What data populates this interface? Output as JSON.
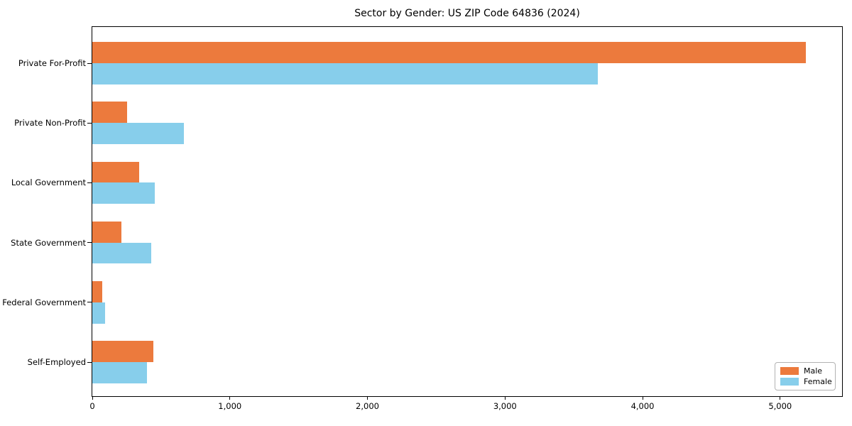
{
  "chart_data": {
    "type": "bar",
    "orientation": "horizontal",
    "title": "Sector by Gender: US ZIP Code 64836 (2024)",
    "categories": [
      "Private For-Profit",
      "Private Non-Profit",
      "Local Government",
      "State Government",
      "Federal Government",
      "Self-Employed"
    ],
    "series": [
      {
        "name": "Male",
        "color": "#EC7A3D",
        "values": [
          5185,
          255,
          340,
          210,
          70,
          445
        ]
      },
      {
        "name": "Female",
        "color": "#87CEEB",
        "values": [
          3675,
          665,
          455,
          430,
          95,
          395
        ]
      }
    ],
    "xlabel": "",
    "ylabel": "",
    "xlim": [
      0,
      5450
    ],
    "xticks": {
      "values": [
        0,
        1000,
        2000,
        3000,
        4000,
        5000
      ],
      "labels": [
        "0",
        "1,000",
        "2,000",
        "3,000",
        "4,000",
        "5,000"
      ]
    },
    "grid": false,
    "legend": {
      "position": "lower right"
    },
    "frame_color": "#000000",
    "background_color": "#ffffff"
  }
}
